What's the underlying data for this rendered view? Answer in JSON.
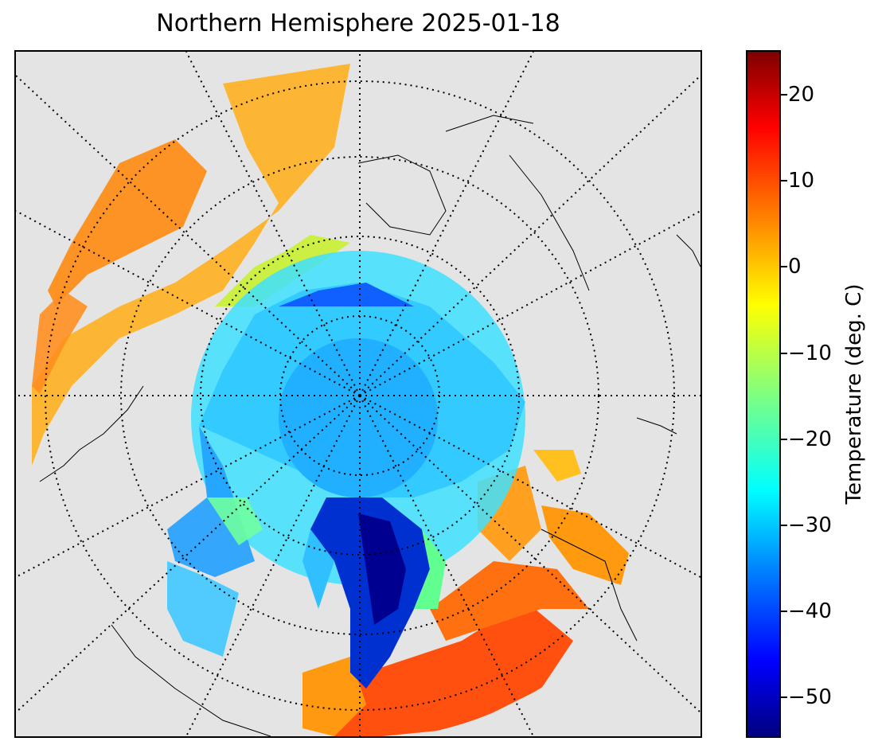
{
  "title": "Northern Hemisphere 2025-01-18",
  "colorbar": {
    "label": "Temperature (deg. C)",
    "colormap": "jet",
    "range": [
      -55,
      25
    ],
    "ticks": [
      {
        "value": 20,
        "label": "20"
      },
      {
        "value": 10,
        "label": "10"
      },
      {
        "value": 0,
        "label": "0"
      },
      {
        "value": -10,
        "label": "−10"
      },
      {
        "value": -20,
        "label": "−20"
      },
      {
        "value": -30,
        "label": "−30"
      },
      {
        "value": -40,
        "label": "−40"
      },
      {
        "value": -50,
        "label": "−50"
      }
    ]
  },
  "map": {
    "projection": "north-polar-stereographic",
    "graticule": "dotted",
    "background_color": "#e4e4e4",
    "coastline_color": "#000000"
  }
}
